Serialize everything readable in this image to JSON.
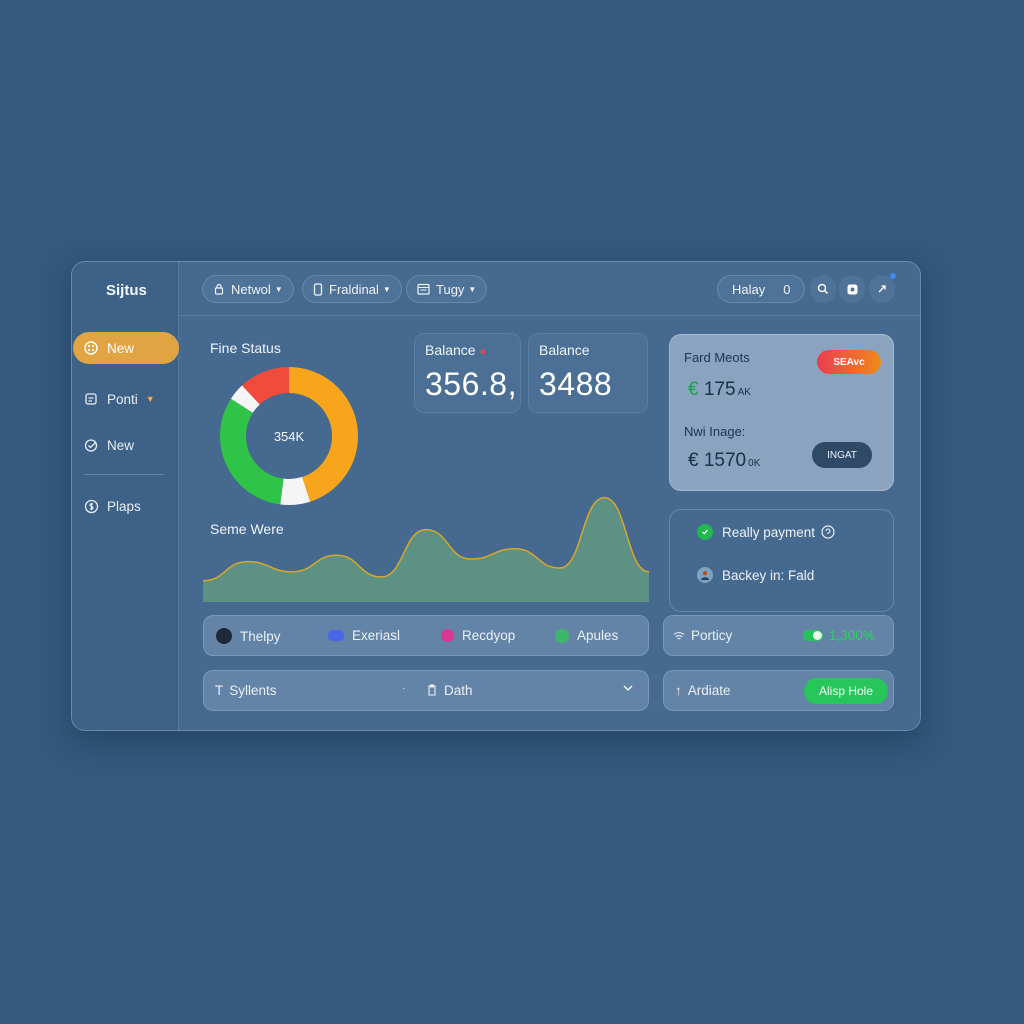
{
  "sidebar": {
    "brand": "Sijtus",
    "items": [
      {
        "label": "New"
      },
      {
        "label": "Ponti"
      },
      {
        "label": "New"
      },
      {
        "label": "Plaps"
      }
    ]
  },
  "topbar": {
    "filters": [
      {
        "label": "Netwol"
      },
      {
        "label": "Fraldinal"
      },
      {
        "label": "Tugy"
      }
    ],
    "user": {
      "name": "Halay",
      "count": "0"
    }
  },
  "donut": {
    "title": "Fine Status",
    "center": "354K",
    "segments": [
      {
        "value": 0.45,
        "color": "#f6a51d"
      },
      {
        "value": 0.07,
        "color": "#f5f5f5"
      },
      {
        "value": 0.32,
        "color": "#2fc447"
      },
      {
        "value": 0.04,
        "color": "#f5f5f5"
      },
      {
        "value": 0.12,
        "color": "#f04a3d"
      }
    ]
  },
  "balances": [
    {
      "label": "Balance",
      "value": "356.8,"
    },
    {
      "label": "Balance",
      "value": "3488"
    }
  ],
  "area": {
    "title": "Seme Were",
    "values": [
      0.15,
      0.3,
      0.22,
      0.35,
      0.18,
      0.55,
      0.32,
      0.4,
      0.25,
      0.8,
      0.22
    ]
  },
  "right_card": {
    "title": "Fard Meots",
    "badge": "SEAvc",
    "amount1": "175",
    "amount1_unit": "AK",
    "subtitle": "Nwi Inage:",
    "amount2": "1570",
    "amount2_unit": "0K",
    "currency": "€",
    "button": "INGAT"
  },
  "list": [
    {
      "label": "Really payment"
    },
    {
      "label": "Backey in: Fald"
    }
  ],
  "legend_bar": [
    {
      "label": "Thelpy",
      "color": "#1f2a38"
    },
    {
      "label": "Exeriasl",
      "color": "#4a66e8"
    },
    {
      "label": "Recdyop",
      "color": "#d6398f"
    },
    {
      "label": "Apules",
      "color": "#3bb66a"
    }
  ],
  "portfolio": {
    "label": "Porticy",
    "value": "1,300%"
  },
  "bottom": {
    "select1": "Syllents",
    "select2": "Dath",
    "right_label": "Ardiate",
    "button": "Alisp Hole"
  },
  "colors": {
    "accent": "#e0a443",
    "green": "#26c65a",
    "background": "#34597d"
  }
}
